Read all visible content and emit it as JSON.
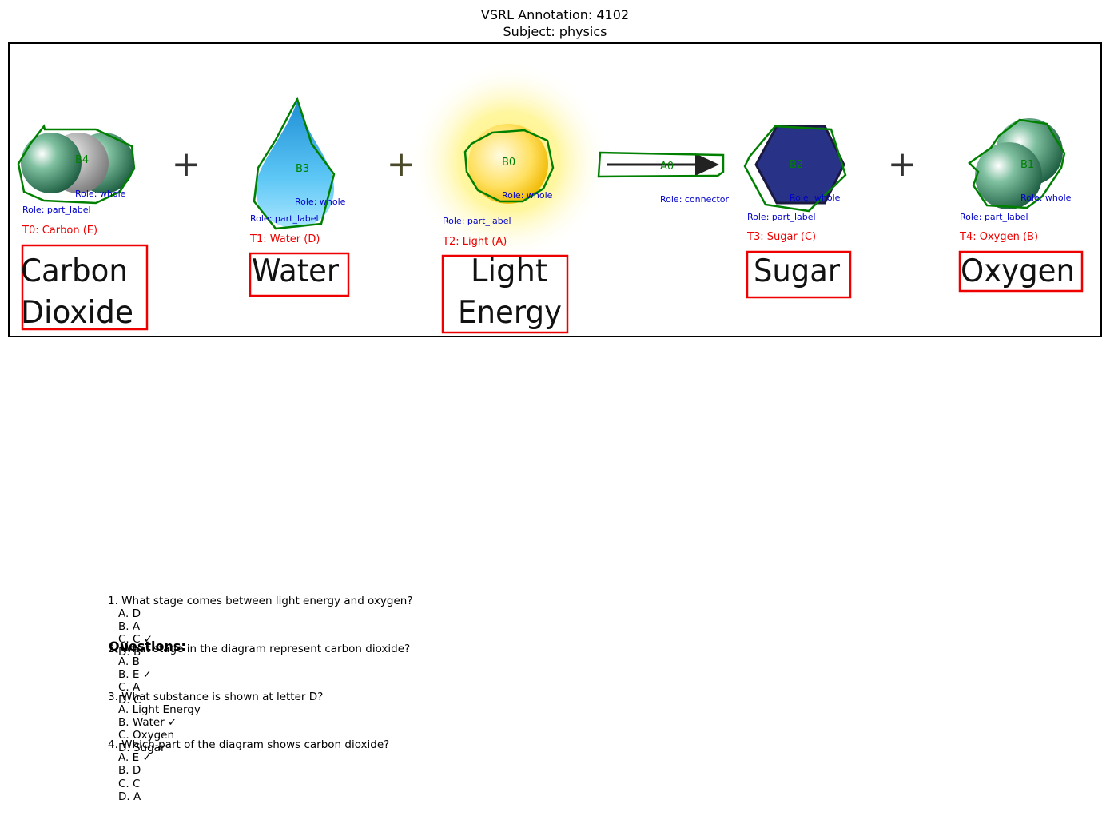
{
  "header": {
    "title_line1": "VSRL Annotation: 4102",
    "title_line2": "Subject: physics"
  },
  "diagram": {
    "plus_sign": "+",
    "blobs": [
      {
        "id": "B4",
        "role": "Role: whole"
      },
      {
        "id": "B3",
        "role": "Role: whole"
      },
      {
        "id": "B0",
        "role": "Role: whole"
      },
      {
        "id": "A0",
        "role": "Role: connector"
      },
      {
        "id": "B2",
        "role": "Role: whole"
      },
      {
        "id": "B1",
        "role": "Role: whole"
      }
    ],
    "text_labels": [
      {
        "tag": "T0: Carbon (E)",
        "role": "Role: part_label",
        "lines": [
          "Carbon",
          "Dioxide"
        ]
      },
      {
        "tag": "T1: Water (D)",
        "role": "Role: part_label",
        "lines": [
          "Water"
        ]
      },
      {
        "tag": "T2: Light (A)",
        "role": "Role: part_label",
        "lines": [
          "Light",
          "Energy"
        ]
      },
      {
        "tag": "T3: Sugar (C)",
        "role": "Role: part_label",
        "lines": [
          "Sugar"
        ]
      },
      {
        "tag": "T4: Oxygen (B)",
        "role": "Role: part_label",
        "lines": [
          "Oxygen"
        ]
      }
    ],
    "colors": {
      "blob_outline": "#008000",
      "text_box": "#ee0000",
      "role_text": "#0000cc",
      "water": "#33b5f0",
      "sun": "#f5d400",
      "sugar": "#283388",
      "molecule": "#2f7d5a",
      "carbon_gray": "#9a9a9a"
    }
  },
  "questions": {
    "header": "Questions:",
    "items": [
      {
        "q": "1. What stage comes between light energy and oxygen?",
        "options": [
          "A. D",
          "B. A",
          "C. C ✓",
          "D. B"
        ]
      },
      {
        "q": "2. What stage in the diagram represent carbon dioxide?",
        "options": [
          "A. B",
          "B. E ✓",
          "C. A",
          "D. C"
        ]
      },
      {
        "q": "3. What substance is shown at letter D?",
        "options": [
          "A. Light Energy",
          "B. Water ✓",
          "C. Oxygen",
          "D. Sugar"
        ]
      },
      {
        "q": "4. Which part of the diagram shows carbon dioxide?",
        "options": [
          "A. E ✓",
          "B. D",
          "C. C",
          "D. A"
        ]
      }
    ]
  }
}
